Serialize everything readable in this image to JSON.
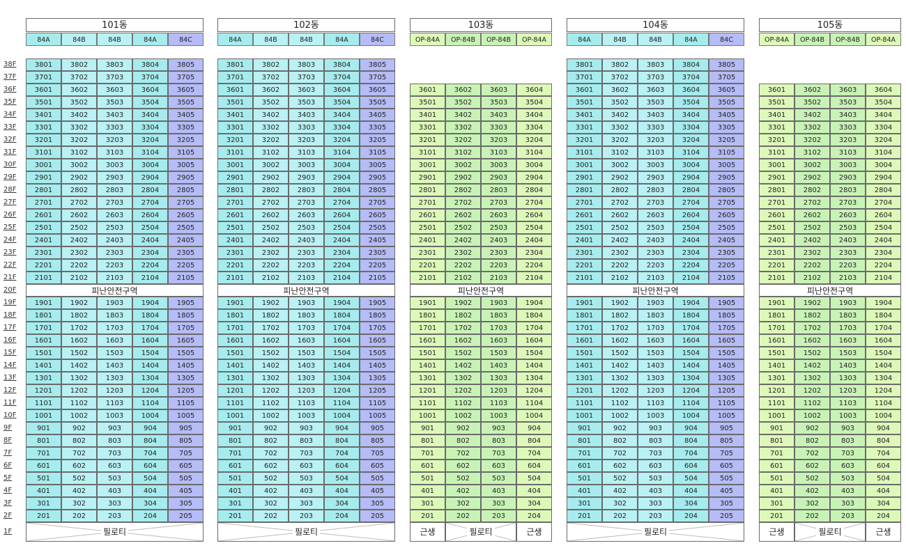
{
  "floor_labels": [
    "38F",
    "37F",
    "36F",
    "35F",
    "34F",
    "33F",
    "32F",
    "31F",
    "30F",
    "29F",
    "28F",
    "27F",
    "26F",
    "25F",
    "24F",
    "23F",
    "22F",
    "21F",
    "20F",
    "19F",
    "18F",
    "17F",
    "16F",
    "15F",
    "14F",
    "13F",
    "12F",
    "11F",
    "10F",
    "9F",
    "8F",
    "7F",
    "6F",
    "5F",
    "4F",
    "3F",
    "2F",
    "1F"
  ],
  "refuge_label": "피난안전구역",
  "pilotis_label": "필로티",
  "retail_label": "근생",
  "colors": {
    "84A": "#a6ecee",
    "84B": "#b9f1f4",
    "84C": "#b5bcf6",
    "OP-84A": "#ddf9b9",
    "OP-84B": "#c9f3b6",
    "refuge": "#ffffff"
  },
  "buildings": [
    {
      "id": "101",
      "title": "101동",
      "types": [
        "84A",
        "84B",
        "84B",
        "84A",
        "84C"
      ],
      "top_floor": 38,
      "ground": "pilotis"
    },
    {
      "id": "102",
      "title": "102동",
      "types": [
        "84A",
        "84B",
        "84B",
        "84A",
        "84C"
      ],
      "top_floor": 38,
      "ground": "pilotis"
    },
    {
      "id": "103",
      "title": "103동",
      "types": [
        "OP-84A",
        "OP-84B",
        "OP-84B",
        "OP-84A"
      ],
      "top_floor": 36,
      "ground": "mixed"
    },
    {
      "id": "104",
      "title": "104동",
      "types": [
        "84A",
        "84B",
        "84B",
        "84A",
        "84C"
      ],
      "top_floor": 38,
      "ground": "pilotis"
    },
    {
      "id": "105",
      "title": "105동",
      "types": [
        "OP-84A",
        "OP-84B",
        "OP-84B",
        "OP-84A"
      ],
      "top_floor": 36,
      "ground": "mixed"
    }
  ]
}
